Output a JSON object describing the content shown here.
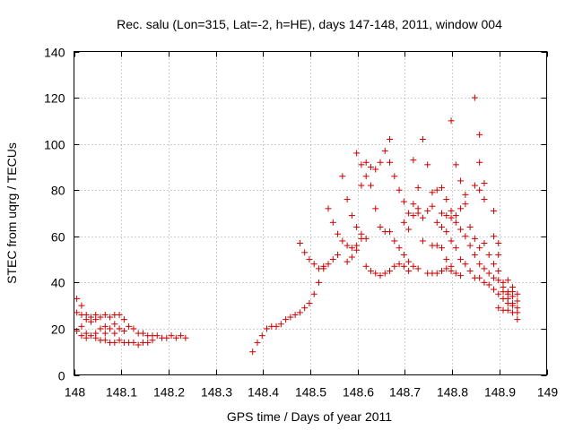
{
  "chart_data": {
    "type": "scatter",
    "title": "Rec. salu (Lon=315, Lat=-2, h=HE), days 147-148, 2011, window 004",
    "xlabel": "GPS time / Days of year 2011",
    "ylabel": "STEC from uqrg / TECUs",
    "xlim": [
      148,
      149
    ],
    "ylim": [
      0,
      140
    ],
    "xticks": [
      148,
      148.1,
      148.2,
      148.3,
      148.4,
      148.5,
      148.6,
      148.7,
      148.8,
      148.9,
      149
    ],
    "xtick_labels": [
      "148",
      "148.1",
      "148.2",
      "148.3",
      "148.4",
      "148.5",
      "148.6",
      "148.7",
      "148.8",
      "148.9",
      "149"
    ],
    "yticks": [
      0,
      20,
      40,
      60,
      80,
      100,
      120,
      140
    ],
    "ytick_labels": [
      "0",
      "20",
      "40",
      "60",
      "80",
      "100",
      "120",
      "140"
    ],
    "grid": true,
    "marker": "plus",
    "marker_color": "#cc0000",
    "series": [
      {
        "points": [
          [
            148.006,
            33
          ],
          [
            148.006,
            27
          ],
          [
            148.006,
            19
          ],
          [
            148.016,
            30
          ],
          [
            148.016,
            26
          ],
          [
            148.016,
            21
          ],
          [
            148.016,
            17
          ],
          [
            148.026,
            26
          ],
          [
            148.026,
            24
          ],
          [
            148.026,
            18
          ],
          [
            148.026,
            16
          ],
          [
            148.036,
            25
          ],
          [
            148.036,
            23
          ],
          [
            148.036,
            17
          ],
          [
            148.046,
            26
          ],
          [
            148.046,
            24
          ],
          [
            148.046,
            18
          ],
          [
            148.046,
            16
          ],
          [
            148.056,
            25
          ],
          [
            148.056,
            20
          ],
          [
            148.056,
            15
          ],
          [
            148.066,
            26
          ],
          [
            148.066,
            21
          ],
          [
            148.066,
            18
          ],
          [
            148.066,
            15
          ],
          [
            148.076,
            25
          ],
          [
            148.076,
            20
          ],
          [
            148.076,
            14
          ],
          [
            148.086,
            26
          ],
          [
            148.086,
            22
          ],
          [
            148.086,
            18
          ],
          [
            148.086,
            14
          ],
          [
            148.096,
            26
          ],
          [
            148.096,
            20
          ],
          [
            148.096,
            15
          ],
          [
            148.106,
            24
          ],
          [
            148.106,
            19
          ],
          [
            148.106,
            14
          ],
          [
            148.116,
            21
          ],
          [
            148.116,
            14
          ],
          [
            148.126,
            20
          ],
          [
            148.126,
            14
          ],
          [
            148.136,
            18
          ],
          [
            148.136,
            13
          ],
          [
            148.146,
            18
          ],
          [
            148.146,
            14
          ],
          [
            148.156,
            17
          ],
          [
            148.156,
            14
          ],
          [
            148.166,
            17
          ],
          [
            148.166,
            15
          ],
          [
            148.176,
            17
          ],
          [
            148.186,
            16
          ],
          [
            148.196,
            16
          ],
          [
            148.206,
            17
          ],
          [
            148.216,
            16
          ],
          [
            148.226,
            17
          ],
          [
            148.236,
            16
          ],
          [
            148.378,
            10
          ],
          [
            148.388,
            14
          ],
          [
            148.398,
            17
          ],
          [
            148.408,
            20
          ],
          [
            148.418,
            21
          ],
          [
            148.428,
            21
          ],
          [
            148.438,
            22
          ],
          [
            148.448,
            24
          ],
          [
            148.458,
            25
          ],
          [
            148.468,
            26
          ],
          [
            148.478,
            27
          ],
          [
            148.488,
            29
          ],
          [
            148.498,
            31
          ],
          [
            148.508,
            35
          ],
          [
            148.518,
            40
          ],
          [
            148.528,
            46
          ],
          [
            148.538,
            48
          ],
          [
            148.548,
            50
          ],
          [
            148.558,
            52
          ],
          [
            148.478,
            57
          ],
          [
            148.488,
            53
          ],
          [
            148.498,
            50
          ],
          [
            148.508,
            48
          ],
          [
            148.518,
            46
          ],
          [
            148.528,
            47
          ],
          [
            148.538,
            72
          ],
          [
            148.548,
            66
          ],
          [
            148.558,
            61
          ],
          [
            148.568,
            58
          ],
          [
            148.578,
            56
          ],
          [
            148.588,
            55
          ],
          [
            148.598,
            54
          ],
          [
            148.568,
            86
          ],
          [
            148.578,
            76
          ],
          [
            148.588,
            69
          ],
          [
            148.598,
            64
          ],
          [
            148.608,
            61
          ],
          [
            148.618,
            59
          ],
          [
            148.598,
            96
          ],
          [
            148.608,
            91
          ],
          [
            148.618,
            86
          ],
          [
            148.628,
            82
          ],
          [
            148.638,
            72
          ],
          [
            148.648,
            64
          ],
          [
            148.658,
            62
          ],
          [
            148.608,
            82
          ],
          [
            148.618,
            92
          ],
          [
            148.628,
            90
          ],
          [
            148.638,
            89
          ],
          [
            148.648,
            92
          ],
          [
            148.658,
            97
          ],
          [
            148.668,
            102
          ],
          [
            148.578,
            49
          ],
          [
            148.588,
            51
          ],
          [
            148.598,
            56
          ],
          [
            148.608,
            59
          ],
          [
            148.618,
            47
          ],
          [
            148.628,
            45
          ],
          [
            148.638,
            44
          ],
          [
            148.648,
            43
          ],
          [
            148.658,
            44
          ],
          [
            148.668,
            45
          ],
          [
            148.678,
            47
          ],
          [
            148.688,
            48
          ],
          [
            148.698,
            47
          ],
          [
            148.708,
            45
          ],
          [
            148.668,
            92
          ],
          [
            148.678,
            86
          ],
          [
            148.688,
            80
          ],
          [
            148.698,
            75
          ],
          [
            148.708,
            70
          ],
          [
            148.718,
            69
          ],
          [
            148.728,
            70
          ],
          [
            148.668,
            62
          ],
          [
            148.678,
            58
          ],
          [
            148.688,
            55
          ],
          [
            148.698,
            52
          ],
          [
            148.708,
            49
          ],
          [
            148.718,
            47
          ],
          [
            148.728,
            46
          ],
          [
            148.698,
            66
          ],
          [
            148.708,
            63
          ],
          [
            148.718,
            93
          ],
          [
            148.728,
            81
          ],
          [
            148.738,
            102
          ],
          [
            148.748,
            71
          ],
          [
            148.758,
            73
          ],
          [
            148.718,
            74
          ],
          [
            148.728,
            72
          ],
          [
            148.738,
            68
          ],
          [
            148.748,
            91
          ],
          [
            148.758,
            79
          ],
          [
            148.768,
            80
          ],
          [
            148.778,
            81
          ],
          [
            148.738,
            58
          ],
          [
            148.748,
            44
          ],
          [
            148.758,
            44
          ],
          [
            148.768,
            44
          ],
          [
            148.778,
            45
          ],
          [
            148.788,
            46
          ],
          [
            148.798,
            45
          ],
          [
            148.758,
            56
          ],
          [
            148.768,
            56
          ],
          [
            148.778,
            55
          ],
          [
            148.788,
            50
          ],
          [
            148.798,
            47
          ],
          [
            148.808,
            44
          ],
          [
            148.818,
            43
          ],
          [
            148.768,
            66
          ],
          [
            148.778,
            70
          ],
          [
            148.788,
            76
          ],
          [
            148.798,
            110
          ],
          [
            148.808,
            91
          ],
          [
            148.818,
            84
          ],
          [
            148.828,
            78
          ],
          [
            148.778,
            64
          ],
          [
            148.788,
            69
          ],
          [
            148.798,
            71
          ],
          [
            148.808,
            69
          ],
          [
            148.818,
            63
          ],
          [
            148.828,
            60
          ],
          [
            148.838,
            56
          ],
          [
            148.788,
            62
          ],
          [
            148.798,
            58
          ],
          [
            148.808,
            55
          ],
          [
            148.818,
            50
          ],
          [
            148.828,
            48
          ],
          [
            148.838,
            45
          ],
          [
            148.848,
            42
          ],
          [
            148.798,
            68
          ],
          [
            148.808,
            66
          ],
          [
            148.818,
            72
          ],
          [
            148.828,
            74
          ],
          [
            148.838,
            64
          ],
          [
            148.848,
            59
          ],
          [
            148.858,
            55
          ],
          [
            148.848,
            120
          ],
          [
            148.858,
            104
          ],
          [
            148.858,
            92
          ],
          [
            148.848,
            82
          ],
          [
            148.858,
            80
          ],
          [
            148.868,
            76
          ],
          [
            148.868,
            83
          ],
          [
            148.848,
            52
          ],
          [
            148.858,
            48
          ],
          [
            148.868,
            46
          ],
          [
            148.878,
            44
          ],
          [
            148.888,
            42
          ],
          [
            148.898,
            41
          ],
          [
            148.908,
            40
          ],
          [
            148.858,
            42
          ],
          [
            148.868,
            40
          ],
          [
            148.878,
            39
          ],
          [
            148.888,
            37
          ],
          [
            148.898,
            35
          ],
          [
            148.908,
            33
          ],
          [
            148.918,
            31
          ],
          [
            148.868,
            57
          ],
          [
            148.878,
            52
          ],
          [
            148.888,
            48
          ],
          [
            148.898,
            45
          ],
          [
            148.908,
            38
          ],
          [
            148.918,
            33
          ],
          [
            148.928,
            31
          ],
          [
            148.888,
            71
          ],
          [
            148.888,
            60
          ],
          [
            148.898,
            57
          ],
          [
            148.898,
            52
          ],
          [
            148.898,
            29
          ],
          [
            148.908,
            28
          ],
          [
            148.918,
            28
          ],
          [
            148.918,
            41
          ],
          [
            148.928,
            38
          ],
          [
            148.928,
            36
          ],
          [
            148.938,
            35
          ],
          [
            148.938,
            32
          ],
          [
            148.938,
            27
          ],
          [
            148.938,
            24
          ],
          [
            148.918,
            36
          ],
          [
            148.928,
            34
          ],
          [
            148.928,
            30
          ],
          [
            148.938,
            29
          ],
          [
            148.928,
            27
          ],
          [
            148.918,
            35
          ],
          [
            148.908,
            36
          ]
        ]
      }
    ]
  }
}
